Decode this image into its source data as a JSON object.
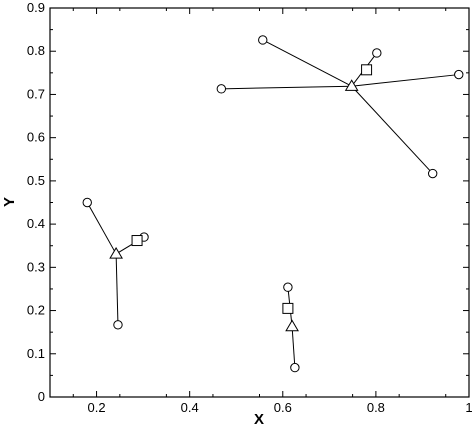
{
  "chart_data": {
    "type": "scatter",
    "xlabel": "X",
    "ylabel": "Y",
    "xlim": [
      0.1,
      1.0
    ],
    "ylim": [
      0,
      0.9
    ],
    "xticks": [
      0.2,
      0.4,
      0.6,
      0.8,
      1
    ],
    "xtick_labels": [
      "0.2",
      "0.4",
      "0.6",
      "0.8",
      "1"
    ],
    "yticks": [
      0,
      0.1,
      0.2,
      0.3,
      0.4,
      0.5,
      0.6,
      0.7,
      0.8,
      0.9
    ],
    "ytick_labels": [
      "0",
      "0.1",
      "0.2",
      "0.3",
      "0.4",
      "0.5",
      "0.6",
      "0.7",
      "0.8",
      "0.9"
    ],
    "grid": false,
    "series": [
      {
        "marker": "circle",
        "points": [
          {
            "x": 0.18,
            "y": 0.45
          },
          {
            "x": 0.302,
            "y": 0.37
          },
          {
            "x": 0.246,
            "y": 0.167
          },
          {
            "x": 0.611,
            "y": 0.254
          },
          {
            "x": 0.626,
            "y": 0.068
          },
          {
            "x": 0.557,
            "y": 0.826
          },
          {
            "x": 0.802,
            "y": 0.796
          },
          {
            "x": 0.468,
            "y": 0.713
          },
          {
            "x": 0.978,
            "y": 0.746
          },
          {
            "x": 0.922,
            "y": 0.517
          }
        ]
      },
      {
        "marker": "triangle",
        "points": [
          {
            "x": 0.242,
            "y": 0.331
          },
          {
            "x": 0.62,
            "y": 0.163
          },
          {
            "x": 0.748,
            "y": 0.719
          }
        ]
      },
      {
        "marker": "square",
        "points": [
          {
            "x": 0.287,
            "y": 0.362
          },
          {
            "x": 0.611,
            "y": 0.205
          },
          {
            "x": 0.78,
            "y": 0.757
          }
        ]
      }
    ],
    "links": [
      {
        "from": [
          0.242,
          0.331
        ],
        "to": [
          0.18,
          0.45
        ]
      },
      {
        "from": [
          0.242,
          0.331
        ],
        "to": [
          0.302,
          0.37
        ]
      },
      {
        "from": [
          0.242,
          0.331
        ],
        "to": [
          0.246,
          0.167
        ]
      },
      {
        "from": [
          0.62,
          0.163
        ],
        "to": [
          0.611,
          0.254
        ]
      },
      {
        "from": [
          0.62,
          0.163
        ],
        "to": [
          0.626,
          0.068
        ]
      },
      {
        "from": [
          0.748,
          0.719
        ],
        "to": [
          0.557,
          0.826
        ]
      },
      {
        "from": [
          0.748,
          0.719
        ],
        "to": [
          0.802,
          0.796
        ]
      },
      {
        "from": [
          0.748,
          0.719
        ],
        "to": [
          0.468,
          0.713
        ]
      },
      {
        "from": [
          0.748,
          0.719
        ],
        "to": [
          0.978,
          0.746
        ]
      },
      {
        "from": [
          0.748,
          0.719
        ],
        "to": [
          0.922,
          0.517
        ]
      }
    ]
  }
}
